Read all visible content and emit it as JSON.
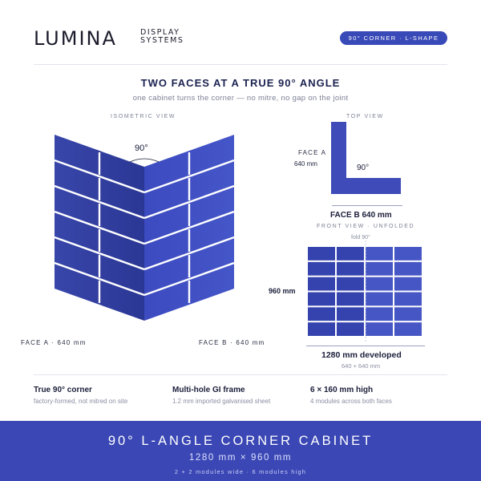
{
  "brand": {
    "name": "LUMINA",
    "line1": "DISPLAY",
    "line2": "SYSTEMS"
  },
  "badge": {
    "label": "90° CORNER · L-SHAPE"
  },
  "heading": {
    "title": "TWO FACES AT A TRUE 90° ANGLE",
    "subtitle": "one cabinet turns the corner — no mitre, no gap on the joint"
  },
  "isometric": {
    "caption": "ISOMETRIC VIEW",
    "angle": "90°",
    "face_a": "FACE A · 640 mm",
    "face_b": "FACE B · 640 mm",
    "rows": 6,
    "cols_per_face": 2
  },
  "top_view": {
    "caption": "TOP VIEW",
    "face_a_label": "FACE A",
    "face_a_size": "640 mm",
    "angle": "90°",
    "face_b": "FACE B 640 mm"
  },
  "front_view": {
    "caption": "FRONT VIEW · UNFOLDED",
    "fold": "fold 90°",
    "height": "960 mm",
    "developed": "1280 mm developed",
    "split": "640 + 640 mm",
    "rows": 6,
    "cols": 4
  },
  "features": [
    {
      "title": "True 90° corner",
      "sub": "factory-formed, not mitred on site"
    },
    {
      "title": "Multi-hole GI frame",
      "sub": "1.2 mm imported galvanised sheet"
    },
    {
      "title": "6 × 160 mm high",
      "sub": "4 modules across both faces"
    }
  ],
  "footer": {
    "title": "90° L-ANGLE CORNER CABINET",
    "dims": "1280 mm × 960 mm",
    "modules": "2 + 2 modules wide · 6 modules high"
  },
  "colors": {
    "accent": "#3a47b4",
    "panel_dark": "#2a3590",
    "panel_light": "#4a5ac8",
    "module_front": "#3e4bb8"
  }
}
